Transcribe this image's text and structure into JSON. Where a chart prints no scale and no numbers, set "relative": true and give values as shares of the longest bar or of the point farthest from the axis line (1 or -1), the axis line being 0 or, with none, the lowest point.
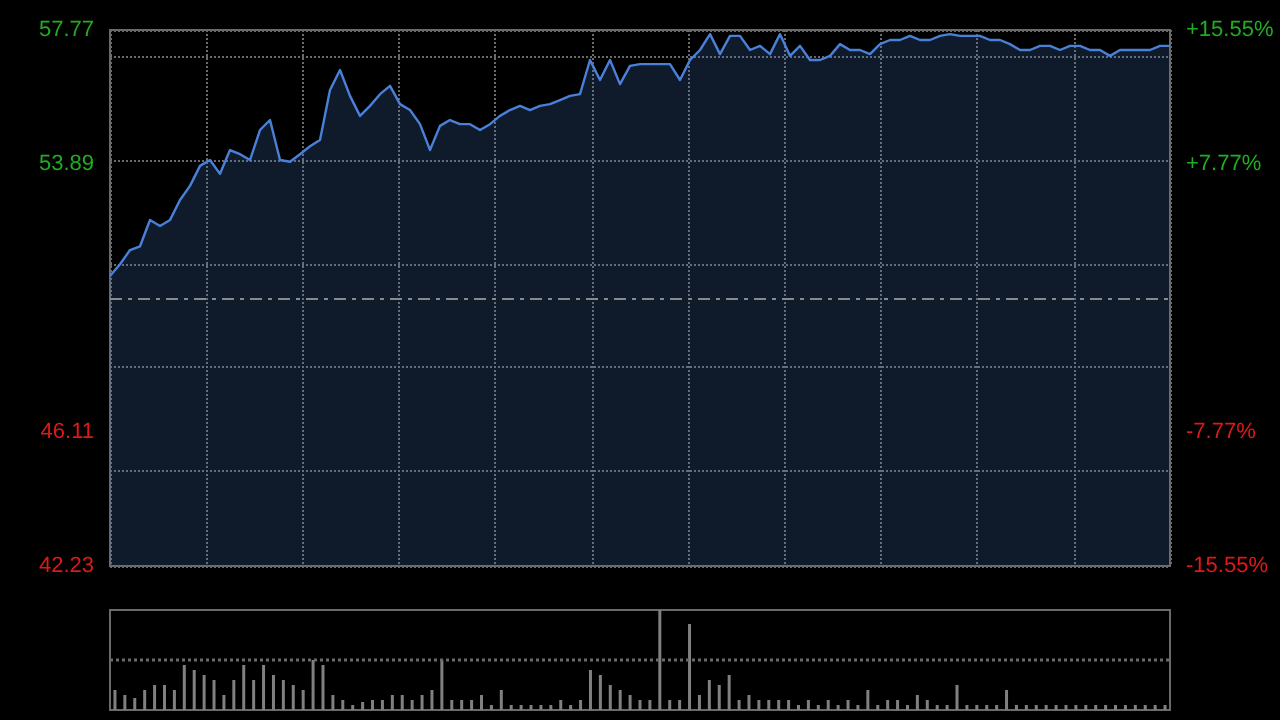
{
  "chart_data": [
    {
      "type": "area",
      "categories": [
        null,
        null,
        null,
        null,
        null,
        null,
        null,
        null,
        null,
        null,
        null,
        null,
        null,
        null,
        null,
        null,
        null,
        null,
        null,
        null,
        null,
        null,
        null,
        null,
        null,
        null,
        null,
        null,
        null,
        null,
        null,
        null,
        null,
        null,
        null,
        null,
        null,
        null,
        null,
        null,
        null,
        null,
        null,
        null,
        null,
        null,
        null,
        null,
        null,
        null,
        null,
        null,
        null,
        null,
        null,
        null,
        null,
        null,
        null,
        null,
        null,
        null,
        null,
        null,
        null,
        null,
        null,
        null,
        null,
        null,
        null,
        null,
        null,
        null,
        null,
        null,
        null,
        null,
        null,
        null,
        null,
        null,
        null,
        null,
        null,
        null,
        null,
        null,
        null,
        null,
        null,
        null,
        null,
        null,
        null,
        null,
        null,
        null,
        null,
        null,
        null,
        null,
        null,
        null,
        null,
        null,
        null
      ],
      "values": [
        50.64,
        50.98,
        51.39,
        51.5,
        52.26,
        52.09,
        52.26,
        52.84,
        53.25,
        53.83,
        54.0,
        53.6,
        54.29,
        54.17,
        54.0,
        54.87,
        55.16,
        54.0,
        53.95,
        54.17,
        54.4,
        54.58,
        56.03,
        56.61,
        55.86,
        55.28,
        55.57,
        55.91,
        56.15,
        55.62,
        55.45,
        55.04,
        54.29,
        54.99,
        55.16,
        55.04,
        55.04,
        54.87,
        55.04,
        55.28,
        55.45,
        55.57,
        55.45,
        55.57,
        55.62,
        55.74,
        55.86,
        55.91,
        56.9,
        56.32,
        56.9,
        56.2,
        56.73,
        56.78,
        56.78,
        56.78,
        56.78,
        56.32,
        56.9,
        57.19,
        57.65,
        57.07,
        57.6,
        57.6,
        57.19,
        57.31,
        57.07,
        57.65,
        57.02,
        57.31,
        56.9,
        56.9,
        57.02,
        57.36,
        57.19,
        57.19,
        57.07,
        57.36,
        57.48,
        57.48,
        57.6,
        57.48,
        57.48,
        57.6,
        57.65,
        57.6,
        57.6,
        57.6,
        57.48,
        57.48,
        57.36,
        57.19,
        57.19,
        57.31,
        57.31,
        57.19,
        57.31,
        57.31,
        57.19,
        57.19,
        57.02,
        57.19,
        57.19,
        57.19,
        57.19,
        57.31,
        57.31
      ],
      "color": "#4a80d8",
      "ylim": [
        42.23,
        57.77
      ],
      "yticks": [
        42.23,
        46.11,
        53.89,
        57.77
      ],
      "y2lim": [
        -15.55,
        15.55
      ],
      "y2ticks": [
        {
          "value": -15.55,
          "label": "-15.55%"
        },
        {
          "value": -7.77,
          "label": "-7.77%"
        },
        {
          "value": 7.77,
          "label": "+7.77%"
        },
        {
          "value": 15.55,
          "label": "+15.55%"
        }
      ],
      "ref_lines": [
        {
          "axis": "y",
          "value": 50,
          "line_style": "dashed",
          "color": "#8a8a8a"
        }
      ],
      "grid": true,
      "tick_labels": "y"
    },
    {
      "type": "bar",
      "relative": true,
      "categories": [
        null,
        null,
        null,
        null,
        null,
        null,
        null,
        null,
        null,
        null,
        null,
        null,
        null,
        null,
        null,
        null,
        null,
        null,
        null,
        null,
        null,
        null,
        null,
        null,
        null,
        null,
        null,
        null,
        null,
        null,
        null,
        null,
        null,
        null,
        null,
        null,
        null,
        null,
        null,
        null,
        null,
        null,
        null,
        null,
        null,
        null,
        null,
        null,
        null,
        null,
        null,
        null,
        null,
        null,
        null,
        null,
        null,
        null,
        null,
        null,
        null,
        null,
        null,
        null,
        null,
        null,
        null,
        null,
        null,
        null,
        null,
        null,
        null,
        null,
        null,
        null,
        null,
        null,
        null,
        null,
        null,
        null,
        null,
        null,
        null,
        null,
        null,
        null,
        null,
        null,
        null,
        null,
        null,
        null,
        null,
        null,
        null,
        null,
        null,
        null,
        null,
        null,
        null,
        null,
        null,
        null,
        null
      ],
      "values": [
        0.2,
        0.15,
        0.12,
        0.2,
        0.25,
        0.25,
        0.2,
        0.45,
        0.4,
        0.35,
        0.3,
        0.15,
        0.3,
        0.45,
        0.3,
        0.45,
        0.35,
        0.3,
        0.25,
        0.2,
        0.5,
        0.45,
        0.15,
        0.1,
        0.05,
        0.08,
        0.1,
        0.1,
        0.15,
        0.15,
        0.1,
        0.15,
        0.2,
        0.5,
        0.1,
        0.1,
        0.1,
        0.15,
        0.05,
        0.2,
        0.05,
        0.05,
        0.05,
        0.05,
        0.05,
        0.1,
        0.05,
        0.1,
        0.4,
        0.35,
        0.25,
        0.2,
        0.15,
        0.1,
        0.1,
        1.0,
        0.1,
        0.1,
        0.86,
        0.15,
        0.3,
        0.25,
        0.35,
        0.1,
        0.15,
        0.1,
        0.1,
        0.1,
        0.1,
        0.05,
        0.1,
        0.05,
        0.1,
        0.05,
        0.1,
        0.05,
        0.2,
        0.05,
        0.1,
        0.1,
        0.05,
        0.15,
        0.1,
        0.05,
        0.05,
        0.25,
        0.05,
        0.05,
        0.05,
        0.05,
        0.2,
        0.05,
        0.05,
        0.05,
        0.05,
        0.05,
        0.05,
        0.05,
        0.05,
        0.05,
        0.05,
        0.05,
        0.05,
        0.05,
        0.05,
        0.05,
        0.05
      ],
      "color": "#808080",
      "ref_lines": [
        {
          "axis": "y",
          "value": 0.5,
          "line_style": "dotted",
          "color": "#6a6a6a"
        }
      ]
    }
  ]
}
